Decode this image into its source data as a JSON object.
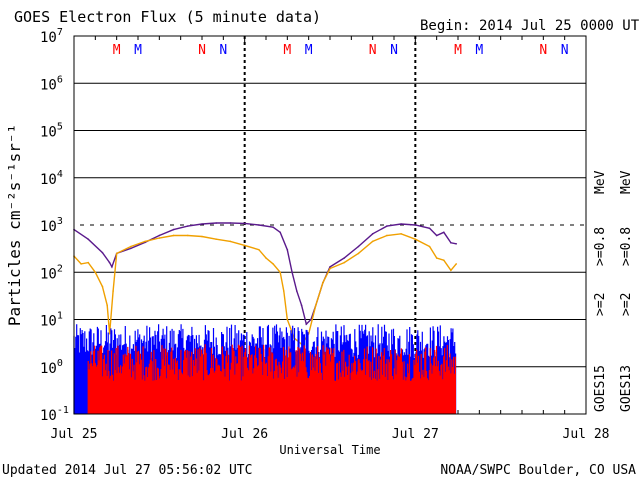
{
  "header": {
    "title": "GOES Electron Flux (5 minute data)",
    "begin": "Begin: 2014 Jul 25 0000 UTC"
  },
  "footer": {
    "updated": "Updated 2014 Jul 27 05:56:02 UTC",
    "credit": "NOAA/SWPC Boulder, CO USA"
  },
  "colors": {
    "goes15_ge08": "#5a1a8c",
    "goes13_ge08": "#f0a000",
    "goes15_ge2": "#0000ff",
    "goes13_ge2": "#ff0000",
    "grid": "#000000"
  },
  "chart_data": {
    "type": "line",
    "title": "GOES Electron Flux (5 minute data)",
    "xlabel": "Universal Time",
    "ylabel": "Particles cm⁻²s⁻¹sr⁻¹",
    "yscale": "log",
    "ylim": [
      0.1,
      10000000
    ],
    "xlim": [
      "2014-07-25 00:00",
      "2014-07-28 00:00"
    ],
    "x_ticks": [
      "Jul 25",
      "Jul 26",
      "Jul 27",
      "Jul 28"
    ],
    "y_ticks": [
      {
        "base": "10",
        "exp": "-1"
      },
      {
        "base": "10",
        "exp": "0"
      },
      {
        "base": "10",
        "exp": "1"
      },
      {
        "base": "10",
        "exp": "2"
      },
      {
        "base": "10",
        "exp": "3"
      },
      {
        "base": "10",
        "exp": "4"
      },
      {
        "base": "10",
        "exp": "5"
      },
      {
        "base": "10",
        "exp": "6"
      },
      {
        "base": "10",
        "exp": "7"
      }
    ],
    "threshold": 1000,
    "markers": [
      {
        "label": "M",
        "time": "2014-07-25 06:00",
        "color": "#ff0000"
      },
      {
        "label": "M",
        "time": "2014-07-25 09:00",
        "color": "#0000ff"
      },
      {
        "label": "N",
        "time": "2014-07-25 18:00",
        "color": "#ff0000"
      },
      {
        "label": "N",
        "time": "2014-07-25 21:00",
        "color": "#0000ff"
      },
      {
        "label": "M",
        "time": "2014-07-26 06:00",
        "color": "#ff0000"
      },
      {
        "label": "M",
        "time": "2014-07-26 09:00",
        "color": "#0000ff"
      },
      {
        "label": "N",
        "time": "2014-07-26 18:00",
        "color": "#ff0000"
      },
      {
        "label": "N",
        "time": "2014-07-26 21:00",
        "color": "#0000ff"
      },
      {
        "label": "M",
        "time": "2014-07-27 06:00",
        "color": "#ff0000"
      },
      {
        "label": "M",
        "time": "2014-07-27 09:00",
        "color": "#0000ff"
      },
      {
        "label": "N",
        "time": "2014-07-27 18:00",
        "color": "#ff0000"
      },
      {
        "label": "N",
        "time": "2014-07-27 21:00",
        "color": "#0000ff"
      }
    ],
    "legend": {
      "goes15_label": "GOES15",
      "goes13_label": "GOES13",
      "goes15_ge2": ">=2",
      "goes15_ge08": ">=0.8",
      "goes13_ge2": ">=2",
      "goes13_ge08": ">=0.8",
      "unit": "MeV"
    },
    "series": [
      {
        "name": "GOES15 >=0.8 MeV",
        "color": "#5a1a8c",
        "points": [
          [
            "2014-07-25 00:00",
            800
          ],
          [
            "2014-07-25 02:00",
            500
          ],
          [
            "2014-07-25 04:00",
            260
          ],
          [
            "2014-07-25 05:00",
            160
          ],
          [
            "2014-07-25 05:20",
            130
          ],
          [
            "2014-07-25 06:00",
            250
          ],
          [
            "2014-07-25 08:00",
            320
          ],
          [
            "2014-07-25 10:00",
            430
          ],
          [
            "2014-07-25 12:00",
            600
          ],
          [
            "2014-07-25 14:00",
            800
          ],
          [
            "2014-07-25 16:00",
            950
          ],
          [
            "2014-07-25 18:00",
            1050
          ],
          [
            "2014-07-25 20:00",
            1100
          ],
          [
            "2014-07-25 22:00",
            1100
          ],
          [
            "2014-07-26 00:00",
            1080
          ],
          [
            "2014-07-26 02:00",
            1000
          ],
          [
            "2014-07-26 04:00",
            900
          ],
          [
            "2014-07-26 05:00",
            700
          ],
          [
            "2014-07-26 06:00",
            300
          ],
          [
            "2014-07-26 06:40",
            100
          ],
          [
            "2014-07-26 07:20",
            40
          ],
          [
            "2014-07-26 08:00",
            20
          ],
          [
            "2014-07-26 08:40",
            8
          ],
          [
            "2014-07-26 09:20",
            10
          ],
          [
            "2014-07-26 10:00",
            20
          ],
          [
            "2014-07-26 11:00",
            60
          ],
          [
            "2014-07-26 12:00",
            130
          ],
          [
            "2014-07-26 14:00",
            200
          ],
          [
            "2014-07-26 16:00",
            350
          ],
          [
            "2014-07-26 18:00",
            650
          ],
          [
            "2014-07-26 20:00",
            950
          ],
          [
            "2014-07-26 22:00",
            1050
          ],
          [
            "2014-07-27 00:00",
            1000
          ],
          [
            "2014-07-27 02:00",
            850
          ],
          [
            "2014-07-27 03:00",
            600
          ],
          [
            "2014-07-27 04:00",
            700
          ],
          [
            "2014-07-27 05:00",
            420
          ],
          [
            "2014-07-27 05:45",
            400
          ]
        ]
      },
      {
        "name": "GOES13 >=0.8 MeV",
        "color": "#f0a000",
        "points": [
          [
            "2014-07-25 00:00",
            220
          ],
          [
            "2014-07-25 01:00",
            150
          ],
          [
            "2014-07-25 02:00",
            160
          ],
          [
            "2014-07-25 03:00",
            100
          ],
          [
            "2014-07-25 04:00",
            50
          ],
          [
            "2014-07-25 04:40",
            20
          ],
          [
            "2014-07-25 05:00",
            5
          ],
          [
            "2014-07-25 05:30",
            40
          ],
          [
            "2014-07-25 06:00",
            250
          ],
          [
            "2014-07-25 08:00",
            350
          ],
          [
            "2014-07-25 10:00",
            450
          ],
          [
            "2014-07-25 12:00",
            530
          ],
          [
            "2014-07-25 14:00",
            600
          ],
          [
            "2014-07-25 16:00",
            600
          ],
          [
            "2014-07-25 18:00",
            570
          ],
          [
            "2014-07-25 20:00",
            500
          ],
          [
            "2014-07-25 22:00",
            450
          ],
          [
            "2014-07-26 00:00",
            370
          ],
          [
            "2014-07-26 02:00",
            300
          ],
          [
            "2014-07-26 03:00",
            200
          ],
          [
            "2014-07-26 04:00",
            150
          ],
          [
            "2014-07-26 05:00",
            100
          ],
          [
            "2014-07-26 05:30",
            40
          ],
          [
            "2014-07-26 06:00",
            10
          ],
          [
            "2014-07-26 07:00",
            4
          ],
          [
            "2014-07-26 08:00",
            3
          ],
          [
            "2014-07-26 09:00",
            5
          ],
          [
            "2014-07-26 10:00",
            20
          ],
          [
            "2014-07-26 11:00",
            60
          ],
          [
            "2014-07-26 12:00",
            120
          ],
          [
            "2014-07-26 14:00",
            160
          ],
          [
            "2014-07-26 16:00",
            250
          ],
          [
            "2014-07-26 18:00",
            450
          ],
          [
            "2014-07-26 20:00",
            600
          ],
          [
            "2014-07-26 22:00",
            650
          ],
          [
            "2014-07-27 00:00",
            500
          ],
          [
            "2014-07-27 02:00",
            350
          ],
          [
            "2014-07-27 03:00",
            200
          ],
          [
            "2014-07-27 04:00",
            180
          ],
          [
            "2014-07-27 05:00",
            110
          ],
          [
            "2014-07-27 05:45",
            150
          ]
        ]
      },
      {
        "name": "GOES15 >=2 MeV",
        "color": "#0000ff",
        "noisy_band": {
          "start": "2014-07-25 00:00",
          "end": "2014-07-27 05:45",
          "typical": 1.5,
          "max": 8
        }
      },
      {
        "name": "GOES13 >=2 MeV",
        "color": "#ff0000",
        "noisy_band": {
          "start": "2014-07-25 02:00",
          "end": "2014-07-27 05:45",
          "typical": 0.5,
          "max": 3
        }
      }
    ]
  }
}
